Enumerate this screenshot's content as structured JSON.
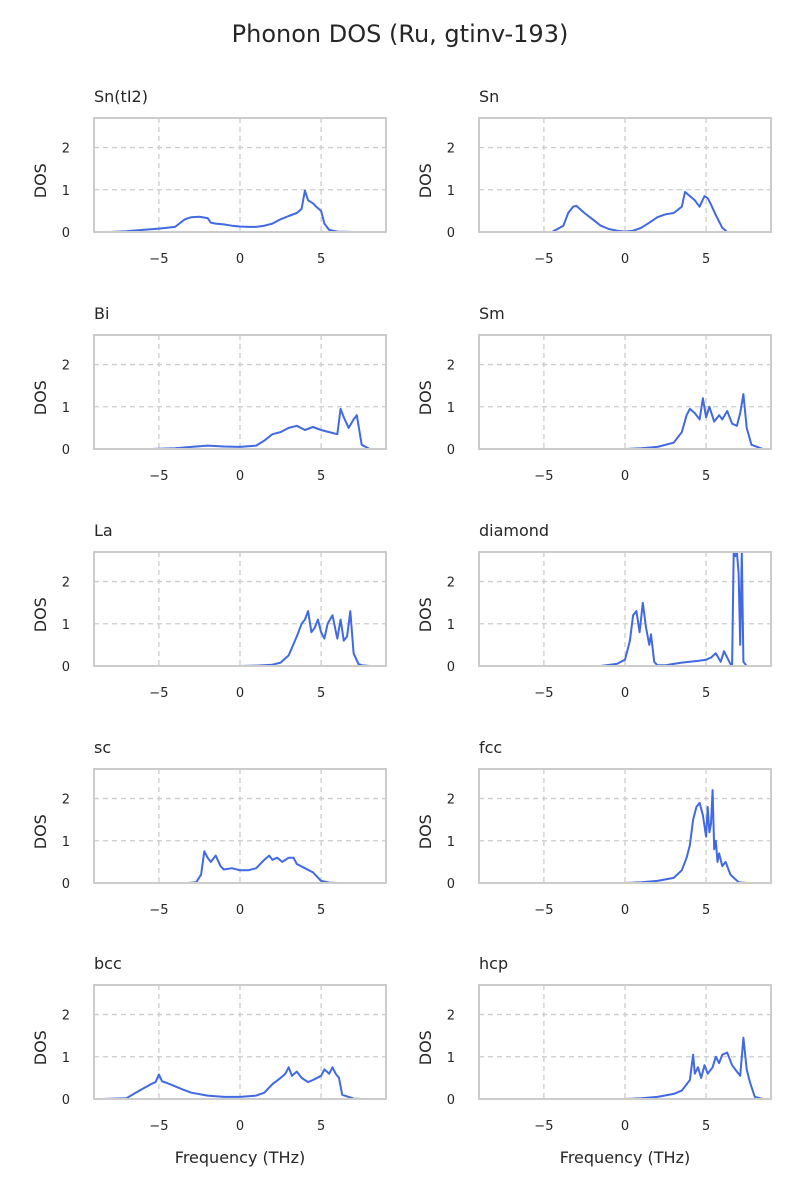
{
  "figure": {
    "title": "Phonon DOS (Ru, gtinv-193)"
  },
  "chart_data": {
    "type": "line",
    "layout": "5x2 grid of small multiples",
    "line_color": "#4169e1",
    "grid": "dashed",
    "xlim": [
      -9,
      9
    ],
    "ylim": [
      0,
      2.7
    ],
    "xticks": [
      -5,
      0,
      5
    ],
    "yticks": [
      0,
      1,
      2
    ],
    "xlabel": "Frequency (THz)",
    "ylabel": "DOS",
    "panels": [
      {
        "title": "Sn(tI2)",
        "x": [
          -8,
          -7,
          -6,
          -5,
          -4,
          -3.4,
          -3,
          -2.5,
          -2,
          -1.8,
          -1.5,
          -1,
          -0.5,
          0,
          0.5,
          1,
          1.5,
          2,
          2.5,
          3,
          3.5,
          3.8,
          4,
          4.2,
          4.5,
          4.7,
          5,
          5.2,
          5.5,
          6,
          7
        ],
        "y": [
          0,
          0.02,
          0.05,
          0.08,
          0.12,
          0.3,
          0.35,
          0.36,
          0.33,
          0.22,
          0.2,
          0.18,
          0.15,
          0.13,
          0.12,
          0.12,
          0.15,
          0.2,
          0.3,
          0.38,
          0.45,
          0.55,
          0.98,
          0.75,
          0.68,
          0.6,
          0.5,
          0.2,
          0.05,
          0.01,
          0
        ]
      },
      {
        "title": "Sn",
        "x": [
          -4.5,
          -3.8,
          -3.5,
          -3.2,
          -3,
          -2.5,
          -2,
          -1.5,
          -1,
          -0.5,
          0,
          0.5,
          1,
          1.5,
          2,
          2.5,
          3,
          3.5,
          3.7,
          4,
          4.3,
          4.6,
          4.9,
          5.1,
          5.3,
          5.6,
          6,
          6.3
        ],
        "y": [
          0,
          0.15,
          0.45,
          0.6,
          0.62,
          0.45,
          0.3,
          0.15,
          0.07,
          0.03,
          0.01,
          0.03,
          0.1,
          0.22,
          0.35,
          0.42,
          0.45,
          0.6,
          0.95,
          0.85,
          0.75,
          0.6,
          0.85,
          0.8,
          0.65,
          0.4,
          0.1,
          0
        ]
      },
      {
        "title": "Bi",
        "x": [
          -5.5,
          -4,
          -3,
          -2,
          -1,
          0,
          1,
          1.5,
          2,
          2.5,
          3,
          3.5,
          4,
          4.5,
          5,
          5.5,
          6,
          6.2,
          6.4,
          6.7,
          7,
          7.2,
          7.5,
          8
        ],
        "y": [
          0,
          0.02,
          0.05,
          0.08,
          0.06,
          0.05,
          0.08,
          0.2,
          0.35,
          0.4,
          0.5,
          0.55,
          0.45,
          0.52,
          0.45,
          0.4,
          0.35,
          0.95,
          0.75,
          0.5,
          0.7,
          0.8,
          0.1,
          0
        ]
      },
      {
        "title": "Sm",
        "x": [
          0,
          1,
          2,
          3,
          3.5,
          3.8,
          4,
          4.3,
          4.6,
          4.8,
          5,
          5.2,
          5.5,
          5.8,
          6,
          6.3,
          6.6,
          6.9,
          7.1,
          7.3,
          7.5,
          7.8,
          8.5
        ],
        "y": [
          0,
          0.02,
          0.05,
          0.15,
          0.4,
          0.8,
          0.95,
          0.85,
          0.7,
          1.2,
          0.75,
          1.0,
          0.65,
          0.8,
          0.7,
          0.9,
          0.6,
          0.55,
          0.85,
          1.3,
          0.5,
          0.1,
          0
        ]
      },
      {
        "title": "La",
        "x": [
          0,
          1,
          2,
          2.5,
          3,
          3.5,
          3.8,
          4,
          4.2,
          4.4,
          4.6,
          4.8,
          5,
          5.2,
          5.4,
          5.7,
          6,
          6.2,
          6.4,
          6.6,
          6.8,
          7,
          7.3,
          7.5,
          8
        ],
        "y": [
          0,
          0.01,
          0.03,
          0.08,
          0.25,
          0.7,
          1.0,
          1.1,
          1.3,
          0.8,
          0.9,
          1.1,
          0.8,
          0.65,
          1.0,
          1.2,
          0.65,
          1.1,
          0.6,
          0.7,
          1.3,
          0.3,
          0.05,
          0.02,
          0
        ]
      },
      {
        "title": "diamond",
        "x": [
          -1.5,
          -0.5,
          0,
          0.3,
          0.5,
          0.7,
          0.9,
          1.1,
          1.3,
          1.5,
          1.6,
          1.8,
          2,
          2.5,
          3,
          3.5,
          4,
          4.5,
          5,
          5.3,
          5.6,
          5.9,
          6.1,
          6.3,
          6.5,
          6.6,
          6.7,
          6.8,
          6.9,
          7.0,
          7.1,
          7.2,
          7.3,
          7.5
        ],
        "y": [
          0,
          0.05,
          0.15,
          0.6,
          1.2,
          1.3,
          0.8,
          1.5,
          0.9,
          0.5,
          0.75,
          0.1,
          0.02,
          0.02,
          0.05,
          0.08,
          0.1,
          0.12,
          0.15,
          0.2,
          0.3,
          0.1,
          0.35,
          0.2,
          0.05,
          0.02,
          2.7,
          2.6,
          2.7,
          2.2,
          0.5,
          2.7,
          0.1,
          0
        ]
      },
      {
        "title": "sc",
        "x": [
          -3.2,
          -2.7,
          -2.4,
          -2.2,
          -2,
          -1.8,
          -1.5,
          -1.2,
          -1,
          -0.5,
          0,
          0.5,
          1,
          1.5,
          1.8,
          2,
          2.3,
          2.6,
          3,
          3.3,
          3.5,
          4,
          4.5,
          5,
          5.5,
          6
        ],
        "y": [
          0,
          0.02,
          0.2,
          0.75,
          0.6,
          0.5,
          0.65,
          0.4,
          0.32,
          0.35,
          0.3,
          0.3,
          0.35,
          0.55,
          0.65,
          0.55,
          0.6,
          0.5,
          0.6,
          0.6,
          0.45,
          0.35,
          0.25,
          0.05,
          0.01,
          0
        ]
      },
      {
        "title": "fcc",
        "x": [
          0,
          1,
          2,
          3,
          3.5,
          3.8,
          4,
          4.2,
          4.4,
          4.6,
          4.8,
          5,
          5.1,
          5.2,
          5.3,
          5.4,
          5.5,
          5.6,
          5.7,
          5.8,
          6,
          6.2,
          6.5,
          7,
          7.5
        ],
        "y": [
          0,
          0.02,
          0.05,
          0.12,
          0.3,
          0.6,
          0.9,
          1.5,
          1.8,
          1.9,
          1.6,
          1.1,
          1.8,
          1.2,
          1.4,
          2.2,
          0.8,
          1.0,
          0.5,
          0.7,
          0.4,
          0.5,
          0.2,
          0.02,
          0
        ]
      },
      {
        "title": "bcc",
        "x": [
          -8.5,
          -7,
          -6.2,
          -5.5,
          -5.2,
          -5,
          -4.8,
          -4.5,
          -4,
          -3.5,
          -3,
          -2,
          -1,
          0,
          1,
          1.5,
          2,
          2.5,
          2.8,
          3,
          3.2,
          3.5,
          3.8,
          4.2,
          4.5,
          5,
          5.2,
          5.5,
          5.7,
          5.9,
          6.1,
          6.3,
          7,
          7.5
        ],
        "y": [
          0,
          0.02,
          0.2,
          0.35,
          0.4,
          0.58,
          0.42,
          0.38,
          0.3,
          0.22,
          0.15,
          0.08,
          0.05,
          0.05,
          0.08,
          0.15,
          0.35,
          0.5,
          0.6,
          0.75,
          0.55,
          0.65,
          0.5,
          0.4,
          0.45,
          0.55,
          0.7,
          0.6,
          0.75,
          0.6,
          0.5,
          0.1,
          0.01,
          0
        ]
      },
      {
        "title": "hcp",
        "x": [
          0,
          1,
          2,
          3,
          3.5,
          4,
          4.2,
          4.3,
          4.5,
          4.7,
          4.9,
          5.1,
          5.4,
          5.6,
          5.8,
          6,
          6.3,
          6.6,
          6.9,
          7.1,
          7.3,
          7.5,
          7.7,
          8,
          8.5
        ],
        "y": [
          0,
          0.02,
          0.05,
          0.12,
          0.2,
          0.45,
          1.05,
          0.6,
          0.75,
          0.5,
          0.8,
          0.6,
          0.75,
          1.0,
          0.85,
          1.05,
          1.1,
          0.8,
          0.65,
          0.55,
          1.45,
          0.7,
          0.4,
          0.05,
          0
        ]
      }
    ]
  }
}
